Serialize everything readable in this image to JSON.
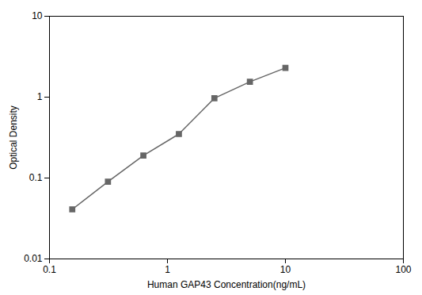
{
  "chart_data": {
    "type": "line",
    "xlabel": "Human GAP43 Concentration(ng/mL)",
    "ylabel": "Optical Density",
    "x": [
      0.156,
      0.313,
      0.625,
      1.25,
      2.5,
      5.0,
      10.0
    ],
    "values": [
      0.041,
      0.09,
      0.19,
      0.35,
      0.97,
      1.55,
      2.3
    ],
    "xlim": [
      0.1,
      100
    ],
    "ylim": [
      0.01,
      10
    ],
    "xticks": [
      0.1,
      1,
      10,
      100
    ],
    "yticks": [
      0.01,
      0.1,
      1,
      10
    ],
    "log": true,
    "grid": false,
    "color": "#666666",
    "marker": "square"
  }
}
